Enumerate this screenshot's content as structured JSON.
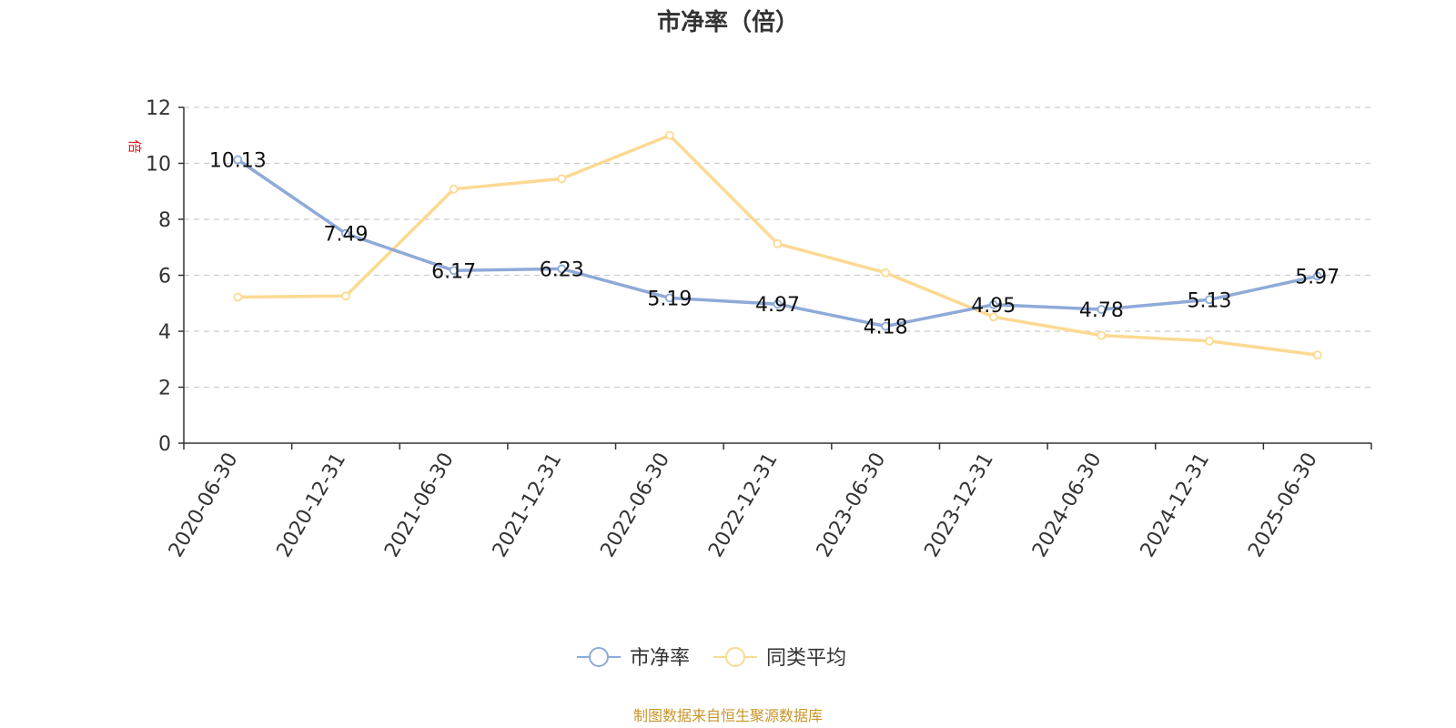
{
  "chart_data": {
    "type": "line",
    "title": "市净率（倍）",
    "unit": "倍",
    "categories": [
      "2020-06-30",
      "2020-12-31",
      "2021-06-30",
      "2021-12-31",
      "2022-06-30",
      "2022-12-31",
      "2023-06-30",
      "2023-12-31",
      "2024-06-30",
      "2024-12-31",
      "2025-06-30"
    ],
    "series": [
      {
        "name": "市净率",
        "color": "#8eaad8",
        "labels": true,
        "values": [
          10.13,
          7.49,
          6.17,
          6.23,
          5.19,
          4.97,
          4.18,
          4.95,
          4.78,
          5.13,
          5.97
        ]
      },
      {
        "name": "同类平均",
        "color": "#fcd993",
        "labels": false,
        "values": [
          5.22,
          5.26,
          9.08,
          9.45,
          11.0,
          7.13,
          6.09,
          4.51,
          3.85,
          3.65,
          3.15
        ]
      }
    ],
    "ylim": [
      0,
      12
    ],
    "yticks": [
      0,
      2,
      4,
      6,
      8,
      10,
      12
    ],
    "grid": true,
    "legend": "bottom-center"
  },
  "source_text": "制图数据来自恒生聚源数据库"
}
